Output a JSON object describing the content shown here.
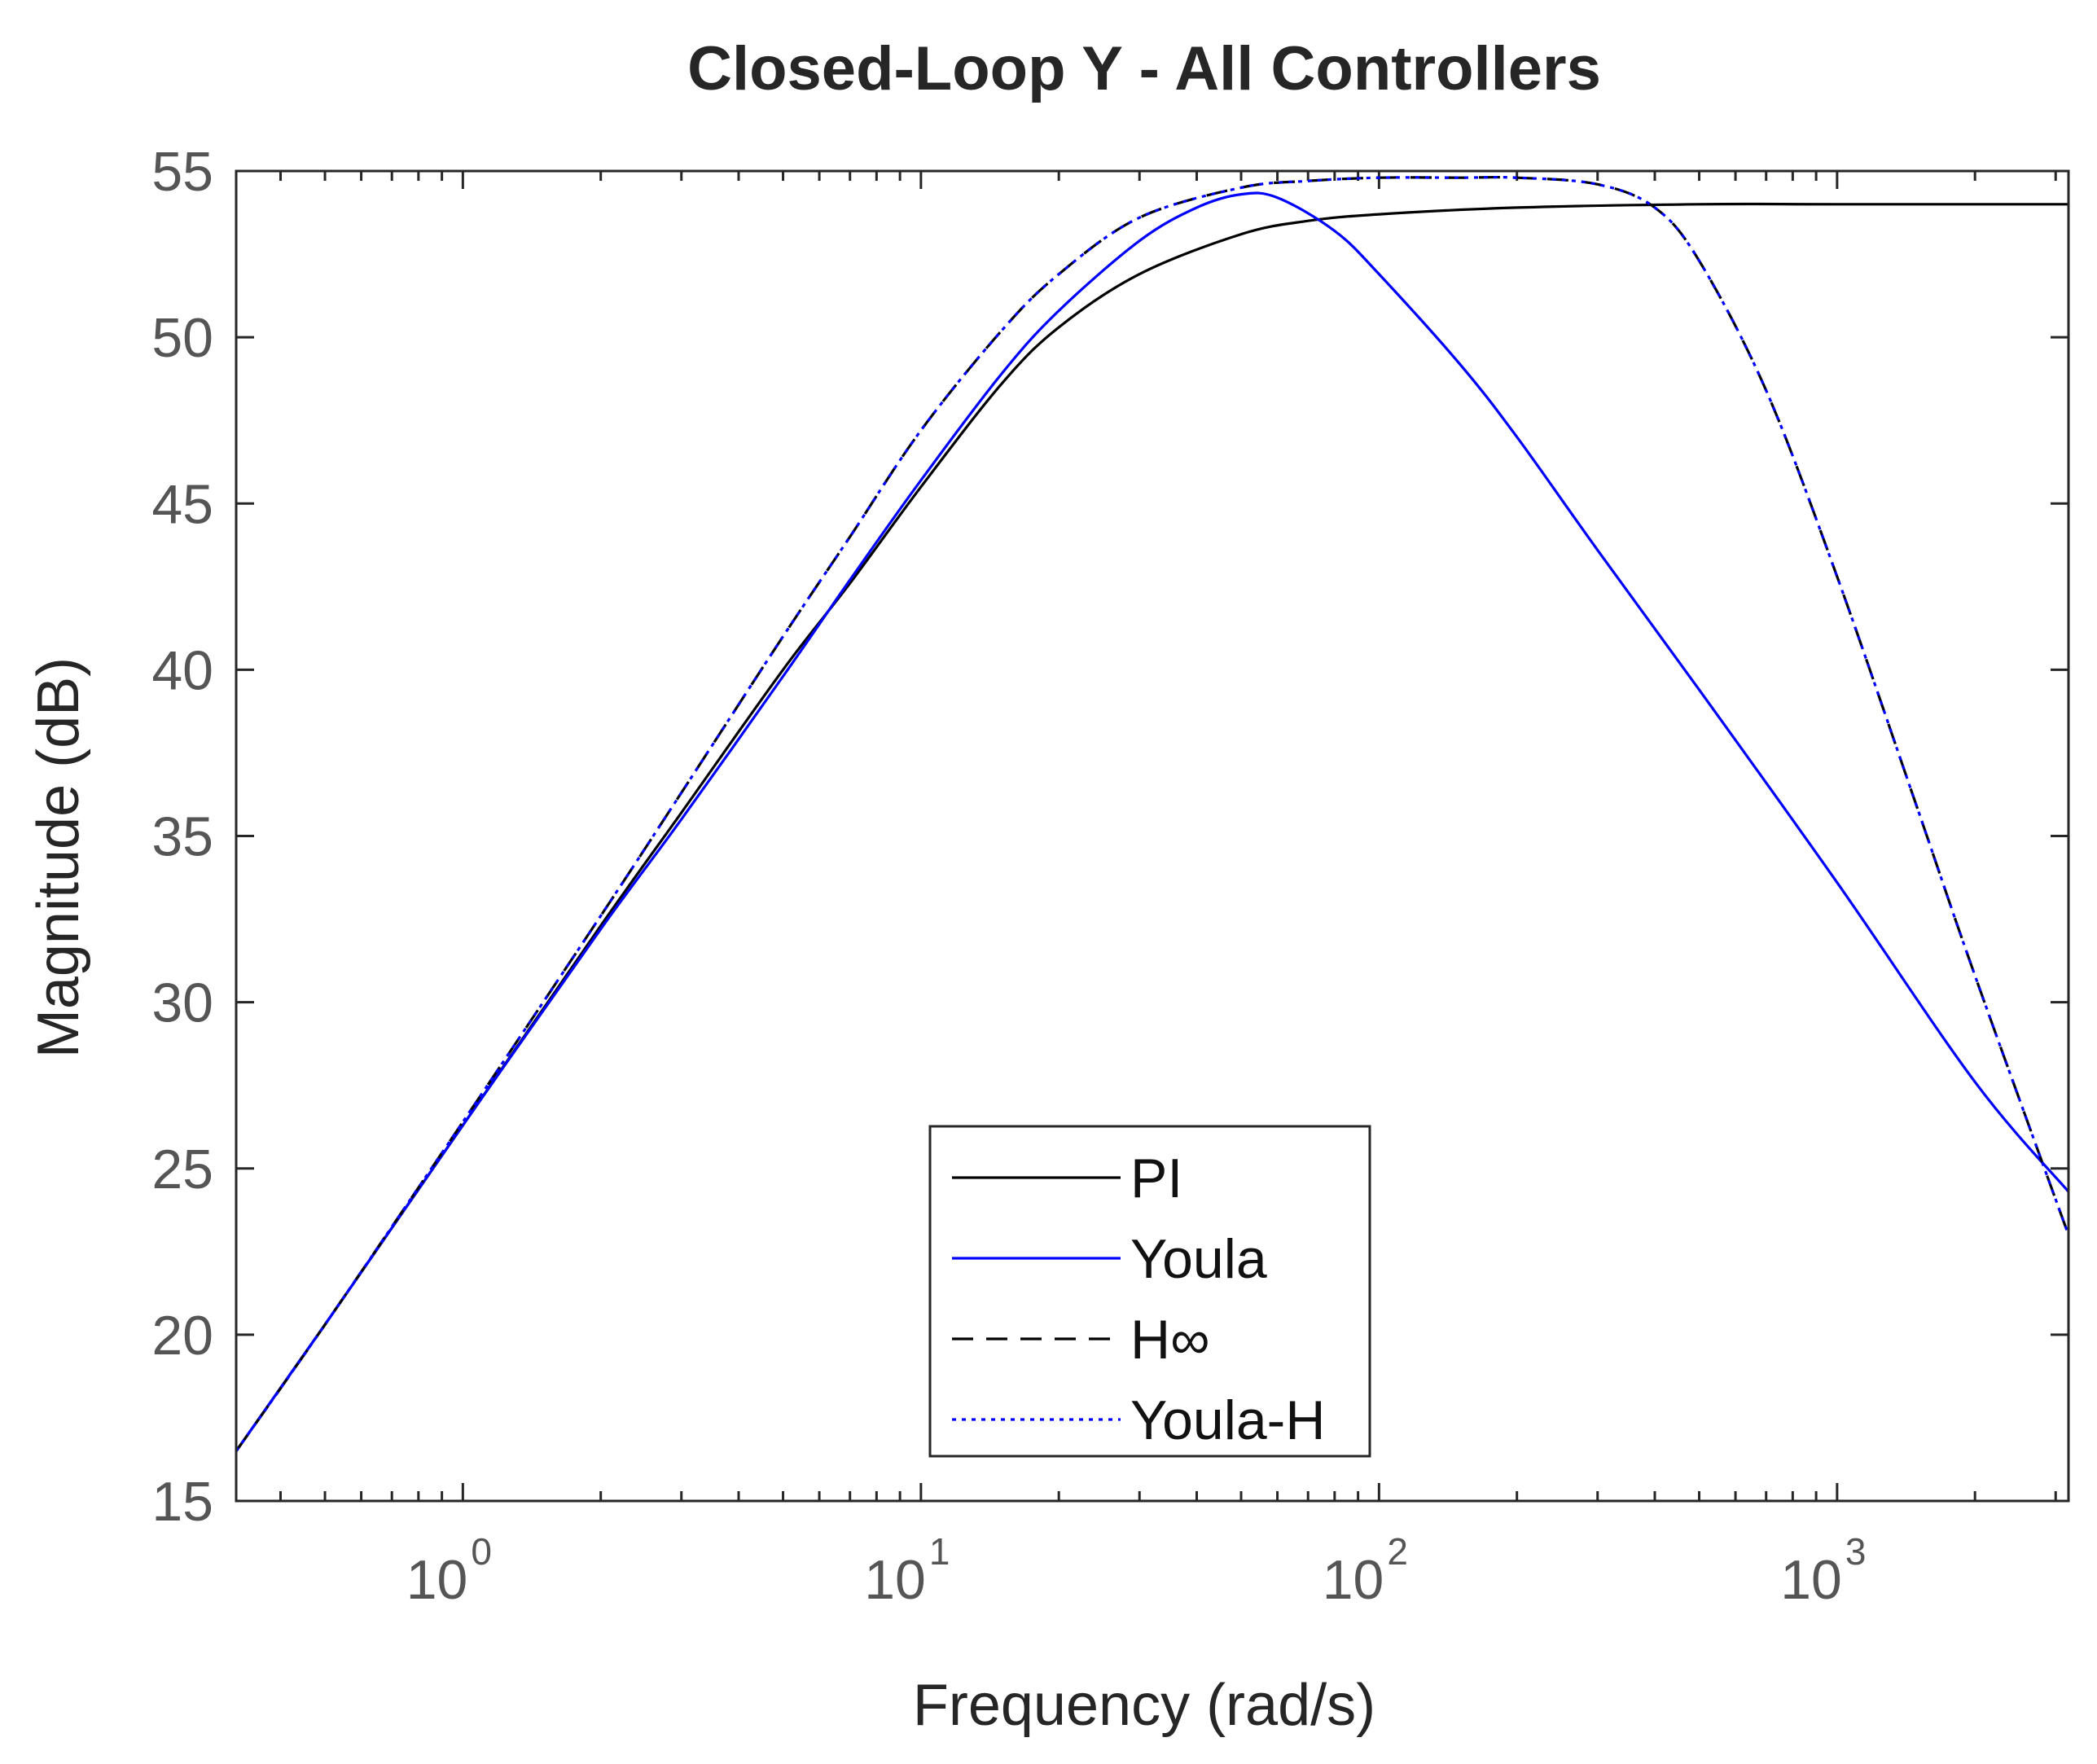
{
  "chart_data": {
    "type": "line",
    "title": "Closed-Loop Y - All Controllers",
    "xlabel": "Frequency (rad/s)",
    "ylabel": "Magnitude (dB)",
    "xscale": "log",
    "xlim": [
      0.32,
      3200
    ],
    "ylim": [
      15,
      55
    ],
    "grid": false,
    "legend_position": "bottom-center",
    "x_ticks": [
      {
        "base": "10",
        "exp": "0",
        "value": 1
      },
      {
        "base": "10",
        "exp": "1",
        "value": 10
      },
      {
        "base": "10",
        "exp": "2",
        "value": 100
      },
      {
        "base": "10",
        "exp": "3",
        "value": 1000
      }
    ],
    "y_ticks": [
      "15",
      "20",
      "25",
      "30",
      "35",
      "40",
      "45",
      "50",
      "55"
    ],
    "series": [
      {
        "name": "PI",
        "color": "#000000",
        "dash": "solid",
        "x": [
          0.32,
          0.5,
          1,
          2,
          3,
          5,
          7,
          10,
          15,
          20,
          30,
          50,
          70,
          100,
          200,
          500,
          1000,
          3200
        ],
        "y": [
          16.5,
          20.3,
          26.3,
          32.3,
          35.7,
          40.0,
          42.6,
          45.5,
          48.6,
          50.3,
          51.9,
          53.1,
          53.5,
          53.7,
          53.9,
          54.0,
          54.0,
          54.0
        ]
      },
      {
        "name": "Youla",
        "color": "#0000ff",
        "dash": "solid",
        "x": [
          0.32,
          0.5,
          1,
          2,
          3,
          5,
          7,
          10,
          15,
          20,
          30,
          40,
          50,
          60,
          80,
          100,
          150,
          200,
          300,
          500,
          1000,
          2000,
          3200
        ],
        "y": [
          16.5,
          20.3,
          26.3,
          32.2,
          35.5,
          39.8,
          42.7,
          45.7,
          48.9,
          50.8,
          52.9,
          53.9,
          54.3,
          54.2,
          53.2,
          51.9,
          49.2,
          47.0,
          43.6,
          39.4,
          33.6,
          27.6,
          24.3
        ]
      },
      {
        "name": "H∞",
        "color": "#000000",
        "dash": "dashed",
        "x": [
          0.32,
          0.5,
          1,
          2,
          3,
          5,
          7,
          10,
          15,
          20,
          30,
          50,
          70,
          100,
          150,
          200,
          300,
          400,
          500,
          700,
          1000,
          1500,
          2000,
          3200
        ],
        "y": [
          16.5,
          20.3,
          26.4,
          32.6,
          36.3,
          41.0,
          44.0,
          47.2,
          50.2,
          51.9,
          53.6,
          54.5,
          54.7,
          54.8,
          54.8,
          54.8,
          54.6,
          53.9,
          52.3,
          48.4,
          42.8,
          35.8,
          30.8,
          23.0
        ]
      },
      {
        "name": "Youla-H",
        "color": "#0000ff",
        "dash": "dotted",
        "x": [
          0.32,
          0.5,
          1,
          2,
          3,
          5,
          7,
          10,
          15,
          20,
          30,
          50,
          70,
          100,
          150,
          200,
          300,
          400,
          500,
          700,
          1000,
          1500,
          2000,
          3200
        ],
        "y": [
          16.5,
          20.3,
          26.4,
          32.6,
          36.3,
          41.0,
          44.0,
          47.2,
          50.2,
          51.9,
          53.6,
          54.5,
          54.7,
          54.8,
          54.8,
          54.8,
          54.6,
          53.9,
          52.3,
          48.4,
          42.8,
          35.8,
          30.8,
          23.0
        ]
      }
    ]
  }
}
